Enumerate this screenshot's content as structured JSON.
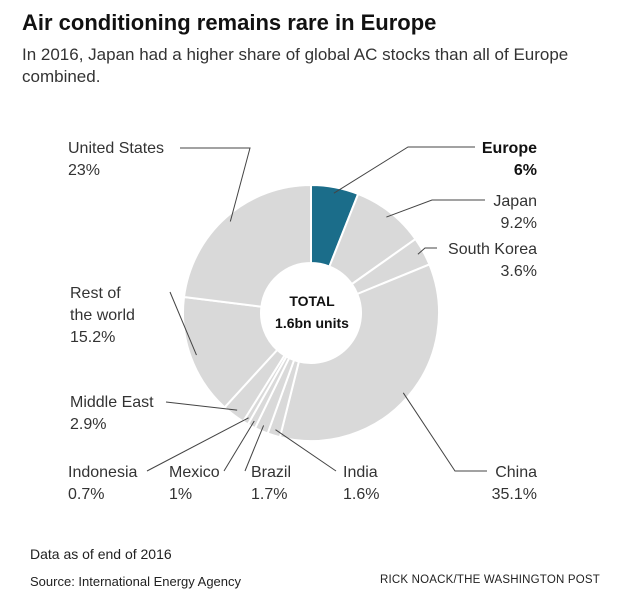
{
  "header": {
    "title": "Air conditioning remains rare in Europe",
    "subtitle": "In 2016, Japan had a higher share of global AC stocks than all of Europe combined."
  },
  "chart_data": {
    "type": "pie",
    "title": "Air conditioning remains rare in Europe",
    "center_label": [
      "TOTAL",
      "1.6bn units"
    ],
    "slices": [
      {
        "name": "Europe",
        "value": 6,
        "label": "6%",
        "highlight": true
      },
      {
        "name": "Japan",
        "value": 9.2,
        "label": "9.2%"
      },
      {
        "name": "South Korea",
        "value": 3.6,
        "label": "3.6%"
      },
      {
        "name": "China",
        "value": 35.1,
        "label": "35.1%"
      },
      {
        "name": "India",
        "value": 1.6,
        "label": "1.6%"
      },
      {
        "name": "Brazil",
        "value": 1.7,
        "label": "1.7%"
      },
      {
        "name": "Mexico",
        "value": 1,
        "label": "1%"
      },
      {
        "name": "Indonesia",
        "value": 0.7,
        "label": "0.7%"
      },
      {
        "name": "Middle East",
        "value": 2.9,
        "label": "2.9%"
      },
      {
        "name": "Rest of the world",
        "value": 15.2,
        "label": "15.2%"
      },
      {
        "name": "United States",
        "value": 23,
        "label": "23%"
      }
    ],
    "colors": {
      "highlight": "#1b6d8a",
      "default": "#d9d9d9",
      "stroke": "#ffffff",
      "leader": "#444444"
    }
  },
  "footer": {
    "note": "Data as of end of 2016",
    "source": "Source: International Energy Agency",
    "credit": "RICK NOACK/THE WASHINGTON POST"
  }
}
